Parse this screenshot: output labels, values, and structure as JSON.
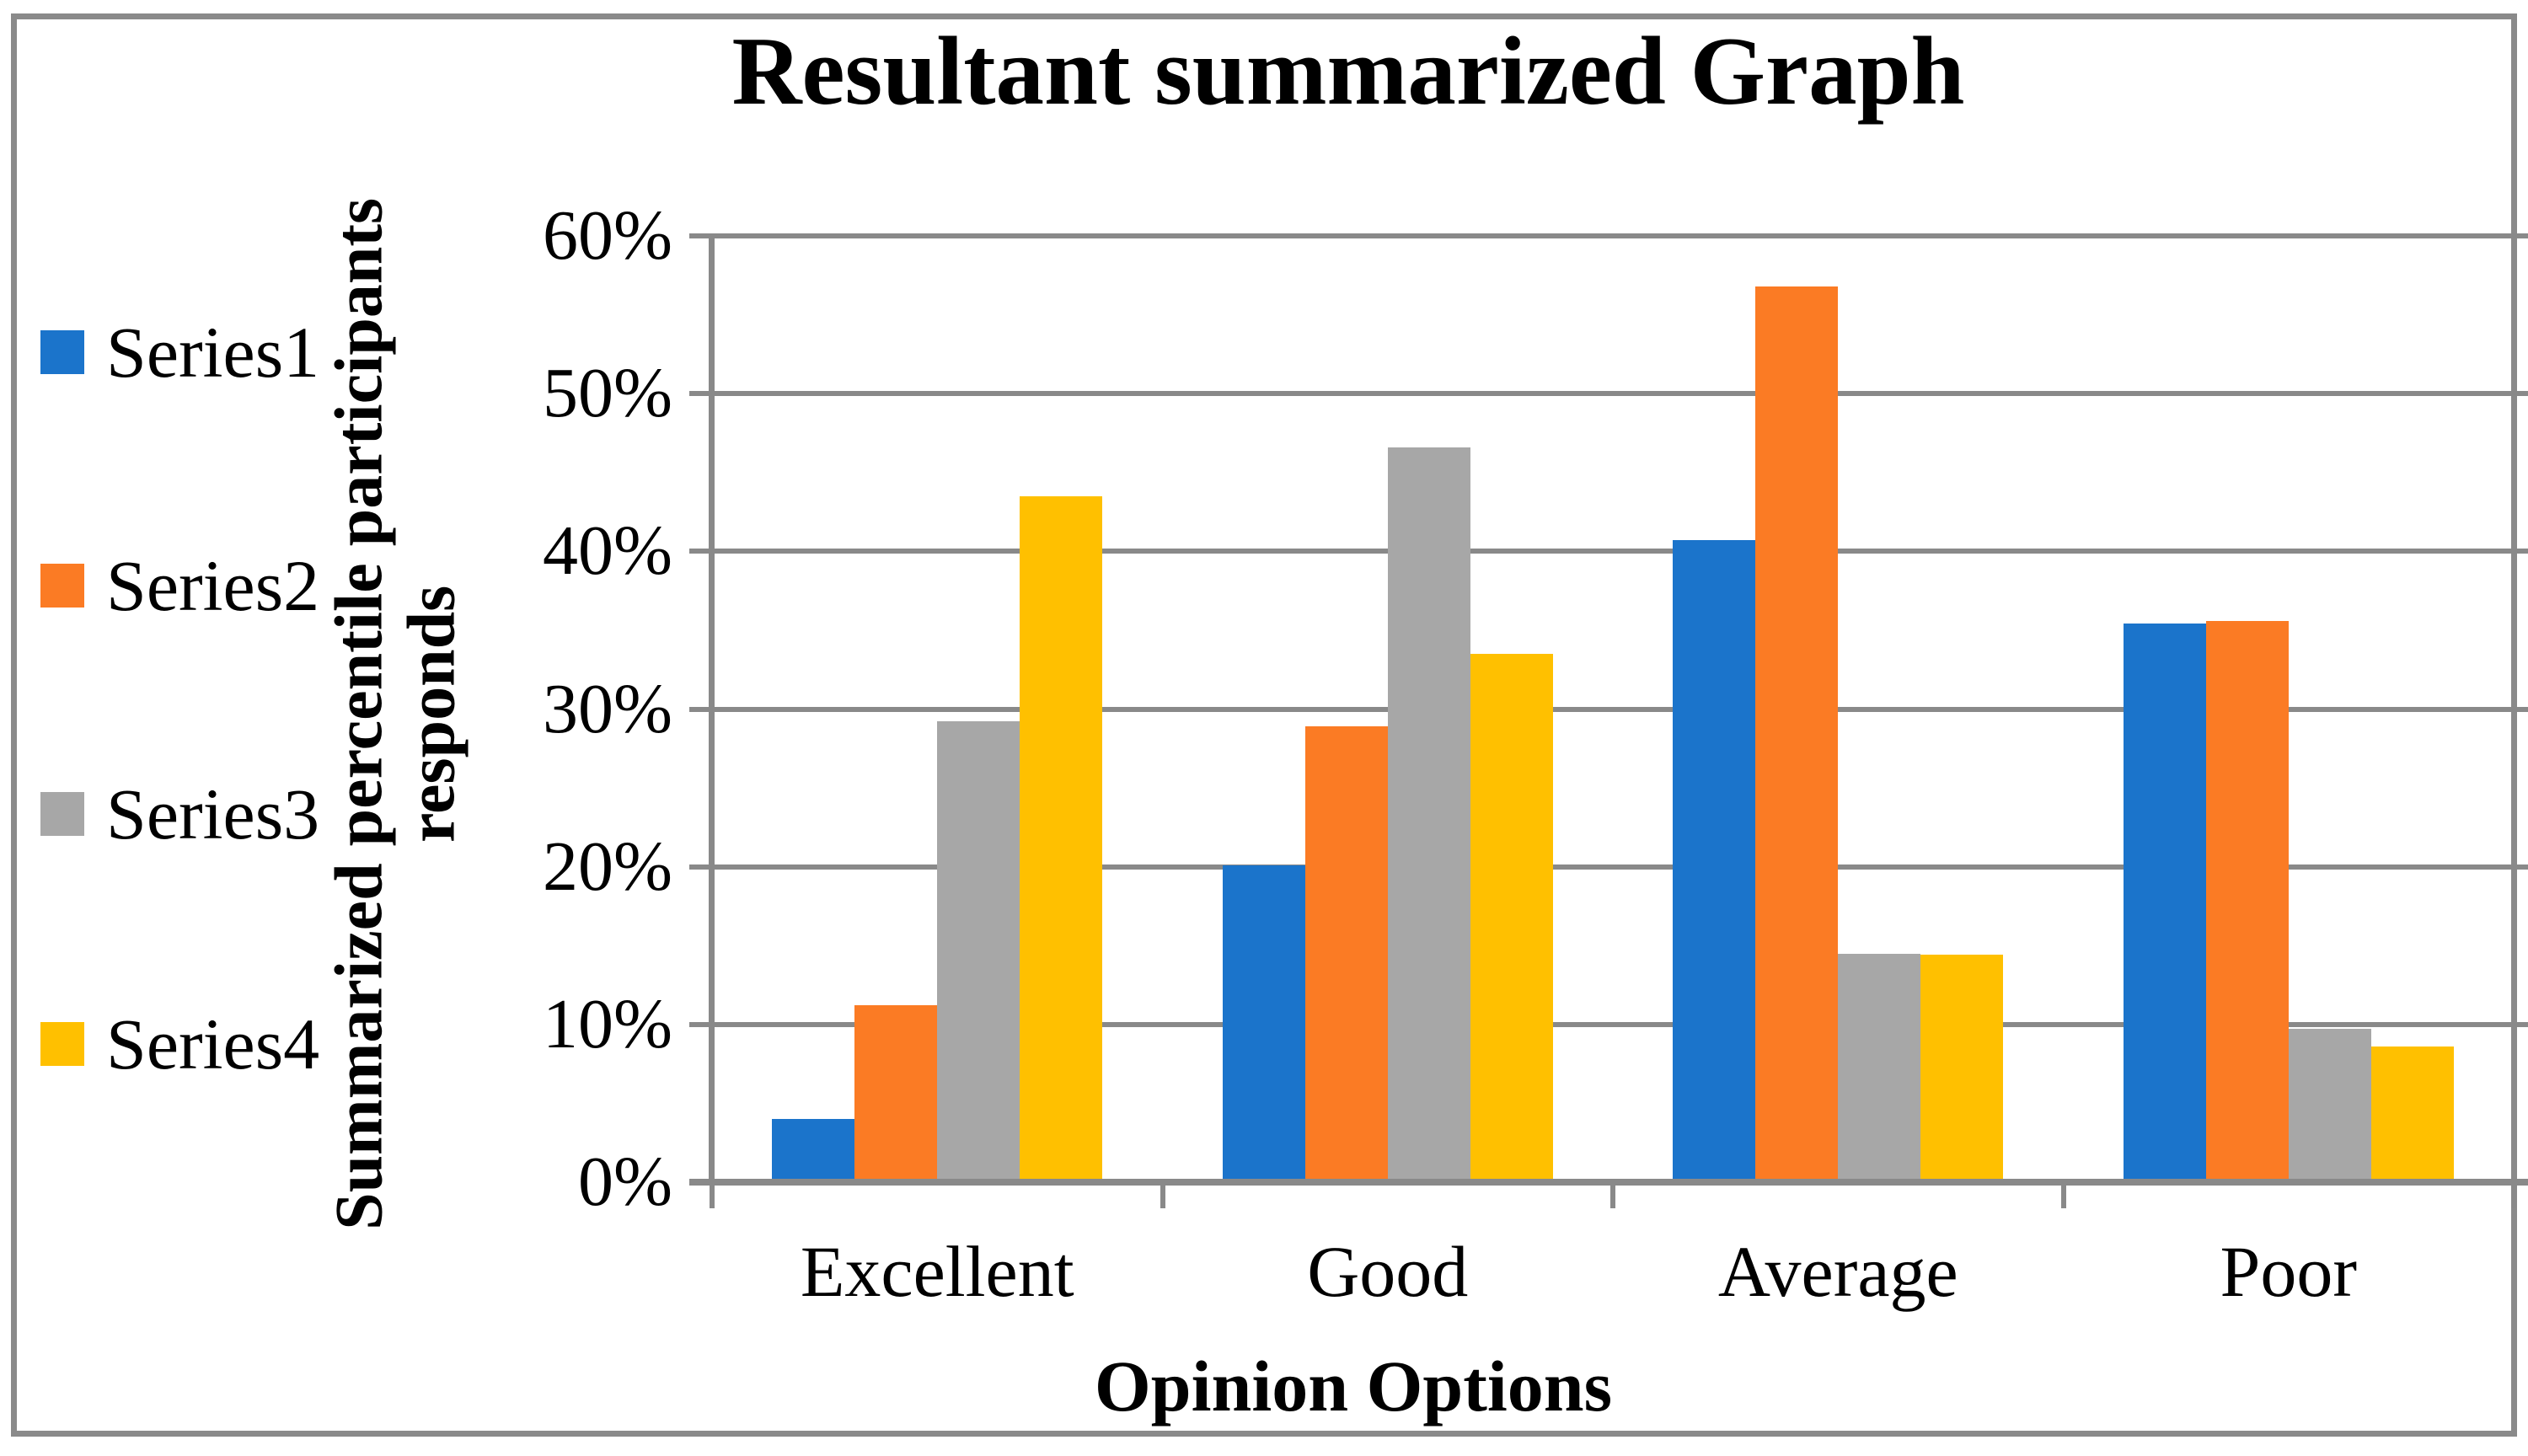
{
  "chart_data": {
    "type": "bar",
    "title": "Resultant summarized Graph",
    "xlabel": "Opinion Options",
    "ylabel": "Summarized percentile participants responds",
    "ylabel_lines": [
      "Summarized percentile participants",
      "responds"
    ],
    "categories": [
      "Excellent",
      "Good",
      "Average",
      "Poor"
    ],
    "series": [
      {
        "name": "Series1",
        "color": "#1B74CB",
        "values": [
          4.0,
          20.1,
          40.7,
          35.4
        ]
      },
      {
        "name": "Series2",
        "color": "#FB7B24",
        "values": [
          11.2,
          28.9,
          56.8,
          35.6
        ]
      },
      {
        "name": "Series3",
        "color": "#A7A7A7",
        "values": [
          29.2,
          46.6,
          14.5,
          9.7
        ]
      },
      {
        "name": "Series4",
        "color": "#FFC000",
        "values": [
          43.5,
          33.5,
          14.4,
          8.6
        ]
      }
    ],
    "ylim": [
      0,
      60
    ],
    "ytick_step": 10,
    "ytick_labels": [
      "0%",
      "10%",
      "20%",
      "30%",
      "40%",
      "50%",
      "60%"
    ],
    "grid": true,
    "legend_position": "left",
    "colors": {
      "axis_and_grid": "#898989",
      "frame_border": "#8A8A8A",
      "background": "#FFFFFF",
      "text": "#000000"
    }
  }
}
